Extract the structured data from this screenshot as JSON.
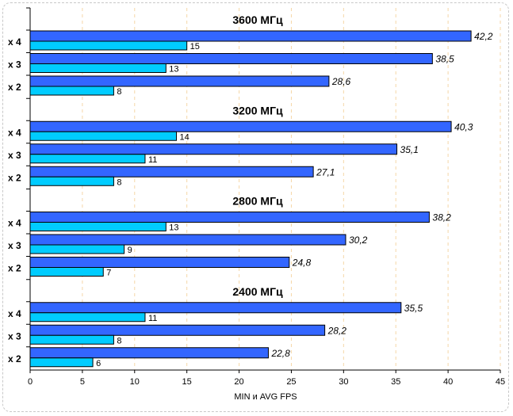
{
  "chart_data": {
    "type": "bar",
    "orientation": "horizontal",
    "xlabel": "MIN и AVG FPS",
    "xlim": [
      0,
      45
    ],
    "xticks": [
      "0",
      "5",
      "10",
      "15",
      "20",
      "25",
      "30",
      "35",
      "40",
      "45"
    ],
    "grid": true,
    "colors": {
      "avg": "#3366ff",
      "min": "#00ccff",
      "grid": "#f5d7a8",
      "axis": "#000000"
    },
    "groups": [
      {
        "title": "3600 МГц",
        "rows": [
          {
            "label": "x 4",
            "avg": 42.2,
            "avg_label": "42,2",
            "min": 15,
            "min_label": "15"
          },
          {
            "label": "x 3",
            "avg": 38.5,
            "avg_label": "38,5",
            "min": 13,
            "min_label": "13"
          },
          {
            "label": "x 2",
            "avg": 28.6,
            "avg_label": "28,6",
            "min": 8,
            "min_label": "8"
          }
        ]
      },
      {
        "title": "3200 МГц",
        "rows": [
          {
            "label": "x 4",
            "avg": 40.3,
            "avg_label": "40,3",
            "min": 14,
            "min_label": "14"
          },
          {
            "label": "x 3",
            "avg": 35.1,
            "avg_label": "35,1",
            "min": 11,
            "min_label": "11"
          },
          {
            "label": "x 2",
            "avg": 27.1,
            "avg_label": "27,1",
            "min": 8,
            "min_label": "8"
          }
        ]
      },
      {
        "title": "2800 МГц",
        "rows": [
          {
            "label": "x 4",
            "avg": 38.2,
            "avg_label": "38,2",
            "min": 13,
            "min_label": "13"
          },
          {
            "label": "x 3",
            "avg": 30.2,
            "avg_label": "30,2",
            "min": 9,
            "min_label": "9"
          },
          {
            "label": "x 2",
            "avg": 24.8,
            "avg_label": "24,8",
            "min": 7,
            "min_label": "7"
          }
        ]
      },
      {
        "title": "2400 МГц",
        "rows": [
          {
            "label": "x 4",
            "avg": 35.5,
            "avg_label": "35,5",
            "min": 11,
            "min_label": "11"
          },
          {
            "label": "x 3",
            "avg": 28.2,
            "avg_label": "28,2",
            "min": 8,
            "min_label": "8"
          },
          {
            "label": "x 2",
            "avg": 22.8,
            "avg_label": "22,8",
            "min": 6,
            "min_label": "6"
          }
        ]
      }
    ]
  }
}
